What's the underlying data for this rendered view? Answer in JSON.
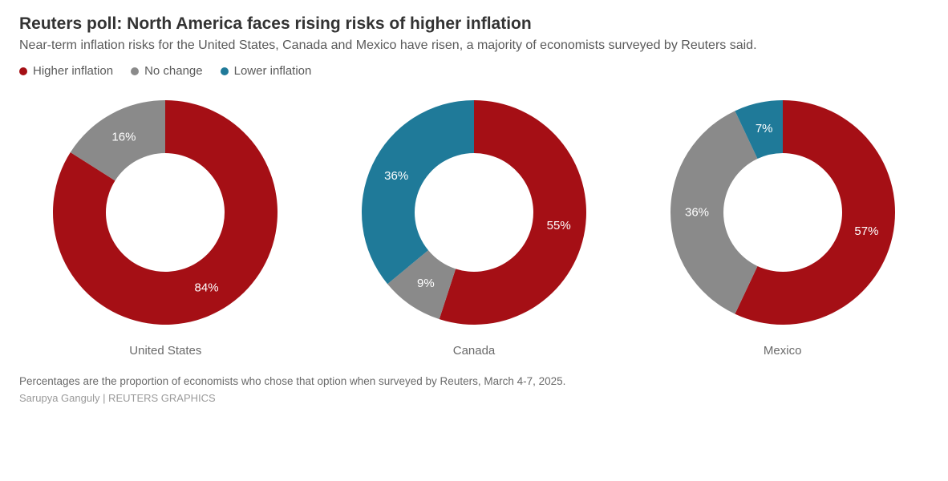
{
  "title": "Reuters poll: North America faces rising risks of higher inflation",
  "subtitle": "Near-term inflation risks for the United States, Canada and Mexico have risen, a majority of economists surveyed by Reuters said.",
  "footnote": "Percentages are the proportion of economists who chose that option when surveyed by Reuters, March 4-7, 2025.",
  "byline": "Sarupya Ganguly | REUTERS GRAPHICS",
  "legend": [
    {
      "label": "Higher inflation",
      "color": "#a50f15"
    },
    {
      "label": "No change",
      "color": "#8a8a8a"
    },
    {
      "label": "Lower inflation",
      "color": "#1f7a99"
    }
  ],
  "chart": {
    "type": "donut",
    "outer_radius": 140,
    "inner_radius": 74,
    "svg_size": 320,
    "background_color": "#ffffff",
    "label_fontsize": 15,
    "label_color": "#ffffff",
    "country_label_fontsize": 15,
    "country_label_color": "#6a6a6a",
    "start_angle_deg": 0,
    "direction": "clockwise",
    "series_order": [
      "higher",
      "no_change",
      "lower"
    ],
    "series_colors": {
      "higher": "#a50f15",
      "no_change": "#8a8a8a",
      "lower": "#1f7a99"
    },
    "countries": [
      {
        "name": "United States",
        "slices": [
          {
            "key": "higher",
            "value": 84,
            "label": "84%"
          },
          {
            "key": "no_change",
            "value": 16,
            "label": "16%"
          }
        ]
      },
      {
        "name": "Canada",
        "slices": [
          {
            "key": "higher",
            "value": 55,
            "label": "55%"
          },
          {
            "key": "no_change",
            "value": 9,
            "label": "9%"
          },
          {
            "key": "lower",
            "value": 36,
            "label": "36%"
          }
        ]
      },
      {
        "name": "Mexico",
        "slices": [
          {
            "key": "higher",
            "value": 57,
            "label": "57%"
          },
          {
            "key": "no_change",
            "value": 36,
            "label": "36%"
          },
          {
            "key": "lower",
            "value": 7,
            "label": "7%"
          }
        ]
      }
    ]
  }
}
